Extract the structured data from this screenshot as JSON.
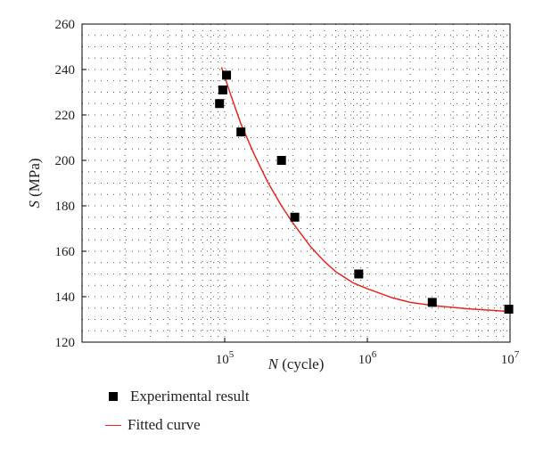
{
  "chart_data": {
    "type": "scatter",
    "x_scale": "log",
    "xlabel_var": "N",
    "xlabel_unit": "(cycle)",
    "ylabel_var": "S",
    "ylabel_unit": "(MPa)",
    "xlim": [
      10000,
      10000000
    ],
    "ylim": [
      120,
      260
    ],
    "y_ticks": [
      120,
      140,
      160,
      180,
      200,
      220,
      240,
      260
    ],
    "x_tick_labels": [
      {
        "value": 100000,
        "base": "10",
        "exp": "5"
      },
      {
        "value": 1000000,
        "base": "10",
        "exp": "6"
      },
      {
        "value": 10000000,
        "base": "10",
        "exp": "7"
      }
    ],
    "grid": true,
    "legend_placement": "bottom-left",
    "series": [
      {
        "name": "Experimental result",
        "kind": "scatter",
        "color": "#000000",
        "points": [
          [
            92000,
            225
          ],
          [
            97000,
            231
          ],
          [
            103000,
            237.5
          ],
          [
            130000,
            212.5
          ],
          [
            250000,
            200
          ],
          [
            310000,
            175
          ],
          [
            870000,
            150
          ],
          [
            2850000,
            137.5
          ],
          [
            9800000,
            134.5
          ]
        ]
      },
      {
        "name": "Fitted curve",
        "kind": "line",
        "color": "#e8261f",
        "points": [
          [
            95000,
            241
          ],
          [
            110000,
            229
          ],
          [
            130000,
            216
          ],
          [
            160000,
            203
          ],
          [
            200000,
            190.5
          ],
          [
            250000,
            180
          ],
          [
            300000,
            172.5
          ],
          [
            400000,
            162
          ],
          [
            500000,
            155.5
          ],
          [
            600000,
            151
          ],
          [
            800000,
            146
          ],
          [
            1000000,
            143.5
          ],
          [
            1500000,
            139.5
          ],
          [
            2000000,
            137.5
          ],
          [
            3000000,
            136
          ],
          [
            5000000,
            134.7
          ],
          [
            10000000,
            133.5
          ]
        ]
      }
    ]
  }
}
